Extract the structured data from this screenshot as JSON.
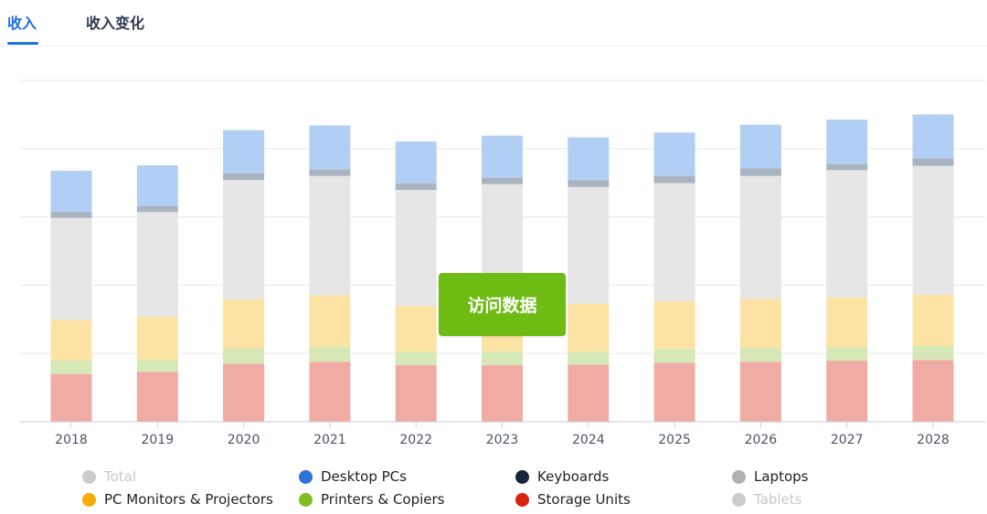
{
  "tabs": [
    {
      "label": "收入",
      "active": true
    },
    {
      "label": "收入变化",
      "active": false
    }
  ],
  "overlay_button": "访问数据",
  "legend": [
    {
      "name": "Total",
      "color": "#cccccc",
      "hidden": true
    },
    {
      "name": "Desktop PCs",
      "color": "#2d73d8",
      "hidden": false
    },
    {
      "name": "Keyboards",
      "color": "#15263b",
      "hidden": false
    },
    {
      "name": "Laptops",
      "color": "#b0b0b0",
      "hidden": false
    },
    {
      "name": "PC Monitors & Projectors",
      "color": "#f8aa0b",
      "hidden": false
    },
    {
      "name": "Printers & Copiers",
      "color": "#7fbf24",
      "hidden": false
    },
    {
      "name": "Storage Units",
      "color": "#d9230f",
      "hidden": false
    },
    {
      "name": "Tablets",
      "color": "#cccccc",
      "hidden": true
    }
  ],
  "chart_data": {
    "type": "bar",
    "stacked": true,
    "categories": [
      "2018",
      "2019",
      "2020",
      "2021",
      "2022",
      "2023",
      "2024",
      "2025",
      "2026",
      "2027",
      "2028"
    ],
    "ylim": [
      0,
      100
    ],
    "grid": true,
    "y_tick_labels_visible": false,
    "legend_position": "bottom",
    "series": [
      {
        "name": "Storage Units",
        "color": "#f0aca4",
        "values": [
          14.0,
          14.6,
          17.0,
          17.6,
          16.6,
          16.6,
          16.8,
          17.3,
          17.6,
          17.9,
          18.1
        ]
      },
      {
        "name": "Printers & Copiers",
        "color": "#d6e8b5",
        "values": [
          4.0,
          3.6,
          4.4,
          4.4,
          4.0,
          4.0,
          3.7,
          4.0,
          4.0,
          3.9,
          4.1
        ]
      },
      {
        "name": "PC Monitors & Projectors",
        "color": "#fde3a3",
        "values": [
          11.8,
          12.6,
          14.4,
          15.0,
          13.3,
          14.0,
          14.0,
          14.0,
          14.4,
          14.6,
          15.0
        ]
      },
      {
        "name": "Tablets",
        "color": "#e6e6e6",
        "values": [
          29.9,
          30.6,
          35.0,
          35.0,
          34.0,
          35.0,
          34.3,
          34.6,
          36.0,
          37.3,
          37.8
        ]
      },
      {
        "name": "Laptops",
        "color": "#aab4c0",
        "values": [
          1.8,
          1.8,
          2.0,
          2.0,
          1.9,
          1.9,
          2.0,
          2.2,
          2.2,
          1.8,
          2.2
        ]
      },
      {
        "name": "Desktop PCs",
        "color": "#b1cff5",
        "values": [
          12.0,
          11.9,
          12.6,
          12.8,
          12.3,
          12.3,
          12.5,
          12.6,
          12.8,
          13.0,
          12.8
        ]
      }
    ]
  }
}
